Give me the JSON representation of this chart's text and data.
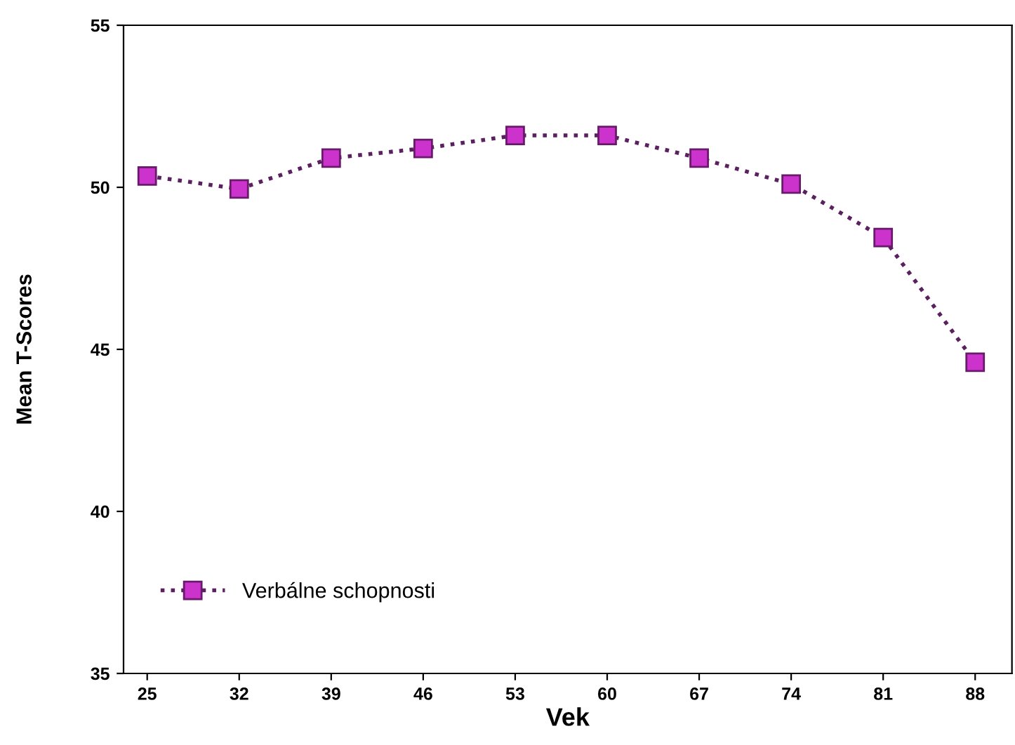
{
  "chart_data": {
    "type": "line",
    "xlabel": "Vek",
    "ylabel": "Mean T-Scores",
    "x": [
      25,
      32,
      39,
      46,
      53,
      60,
      67,
      74,
      81,
      88
    ],
    "series": [
      {
        "name": "Verbálne schopnosti",
        "color": "#cc33cc",
        "values": [
          50.35,
          49.95,
          50.9,
          51.2,
          51.6,
          51.6,
          50.9,
          50.1,
          48.45,
          44.6
        ]
      }
    ],
    "xlim": [
      23.2,
      90.8
    ],
    "xticks": [
      25,
      32,
      39,
      46,
      53,
      60,
      67,
      74,
      81,
      88
    ],
    "ylim": [
      35,
      55
    ],
    "yticks": [
      35,
      40,
      45,
      50,
      55
    ],
    "marker": "square",
    "line_style": "dotted",
    "grid": false,
    "legend": "bottom left"
  }
}
